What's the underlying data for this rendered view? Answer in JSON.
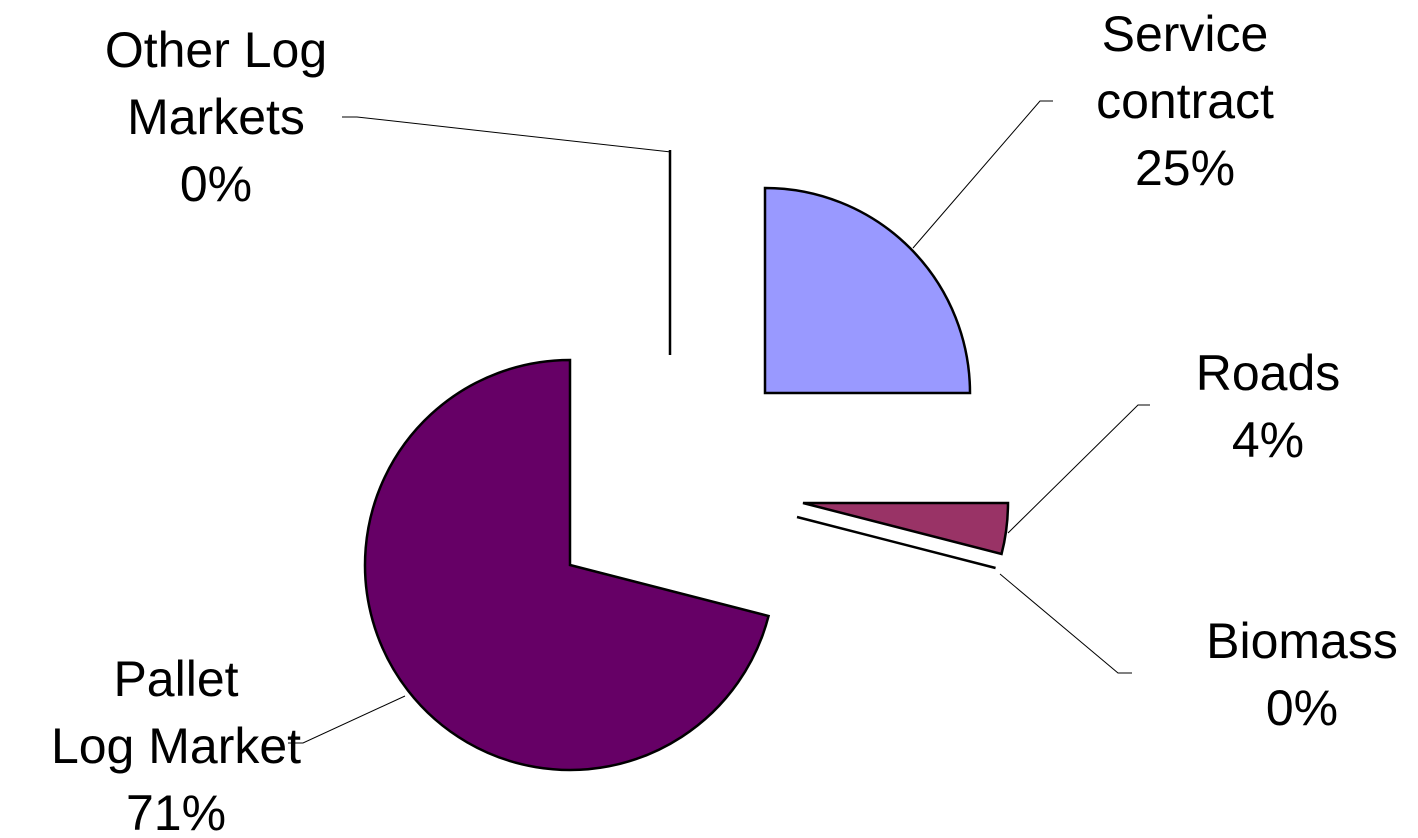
{
  "chart_data": {
    "type": "pie",
    "title": "",
    "slices": [
      {
        "label_lines": [
          "Service",
          "contract"
        ],
        "percent_label": "25%",
        "value": 25,
        "color": "#9999ff"
      },
      {
        "label_lines": [
          "Roads"
        ],
        "percent_label": "4%",
        "value": 4,
        "color": "#993366"
      },
      {
        "label_lines": [
          "Biomass"
        ],
        "percent_label": "0%",
        "value": 0,
        "color": "#cc6699"
      },
      {
        "label_lines": [
          "Pallet",
          "Log Market"
        ],
        "percent_label": "71%",
        "value": 71,
        "color": "#660066"
      },
      {
        "label_lines": [
          "Other Log",
          "Markets"
        ],
        "percent_label": "0%",
        "value": 0,
        "color": "#ccffff"
      }
    ],
    "exploded": true,
    "legend": "none"
  }
}
